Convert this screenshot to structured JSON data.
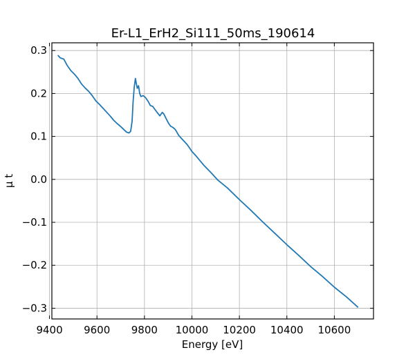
{
  "chart_data": {
    "type": "line",
    "title": "Er-L1_ErH2_Si111_50ms_190614",
    "xlabel": "Energy [eV]",
    "ylabel": "μ t",
    "xlim": [
      9410,
      10765
    ],
    "ylim": [
      -0.325,
      0.318
    ],
    "xticks": [
      9400,
      9600,
      9800,
      10000,
      10200,
      10400,
      10600
    ],
    "xtick_labels": [
      "9400",
      "9600",
      "9800",
      "10000",
      "10200",
      "10400",
      "10600"
    ],
    "yticks": [
      -0.3,
      -0.2,
      -0.1,
      0.0,
      0.1,
      0.2,
      0.3
    ],
    "ytick_labels": [
      "−0.3",
      "−0.2",
      "−0.1",
      "0.0",
      "0.1",
      "0.2",
      "0.3"
    ],
    "grid": true,
    "line_color": "#1f77b4",
    "series": [
      {
        "name": "",
        "x": [
          9435,
          9445,
          9460,
          9475,
          9490,
          9505,
          9520,
          9535,
          9550,
          9565,
          9580,
          9595,
          9610,
          9625,
          9640,
          9655,
          9670,
          9685,
          9700,
          9715,
          9725,
          9735,
          9742,
          9748,
          9752,
          9757,
          9762,
          9766,
          9770,
          9775,
          9780,
          9785,
          9795,
          9805,
          9815,
          9825,
          9835,
          9845,
          9855,
          9865,
          9875,
          9882,
          9890,
          9900,
          9910,
          9920,
          9930,
          9945,
          9960,
          9980,
          10000,
          10020,
          10050,
          10080,
          10110,
          10150,
          10200,
          10250,
          10300,
          10350,
          10400,
          10450,
          10500,
          10550,
          10600,
          10650,
          10700
        ],
        "y": [
          0.289,
          0.283,
          0.28,
          0.265,
          0.253,
          0.245,
          0.235,
          0.222,
          0.213,
          0.205,
          0.195,
          0.183,
          0.175,
          0.166,
          0.157,
          0.148,
          0.138,
          0.13,
          0.123,
          0.115,
          0.11,
          0.108,
          0.112,
          0.135,
          0.18,
          0.215,
          0.235,
          0.222,
          0.212,
          0.218,
          0.2,
          0.193,
          0.195,
          0.19,
          0.182,
          0.172,
          0.17,
          0.162,
          0.155,
          0.148,
          0.156,
          0.152,
          0.143,
          0.132,
          0.124,
          0.121,
          0.116,
          0.102,
          0.093,
          0.081,
          0.065,
          0.053,
          0.033,
          0.016,
          -0.002,
          -0.02,
          -0.047,
          -0.073,
          -0.1,
          -0.126,
          -0.152,
          -0.177,
          -0.203,
          -0.226,
          -0.251,
          -0.273,
          -0.298
        ]
      }
    ]
  }
}
